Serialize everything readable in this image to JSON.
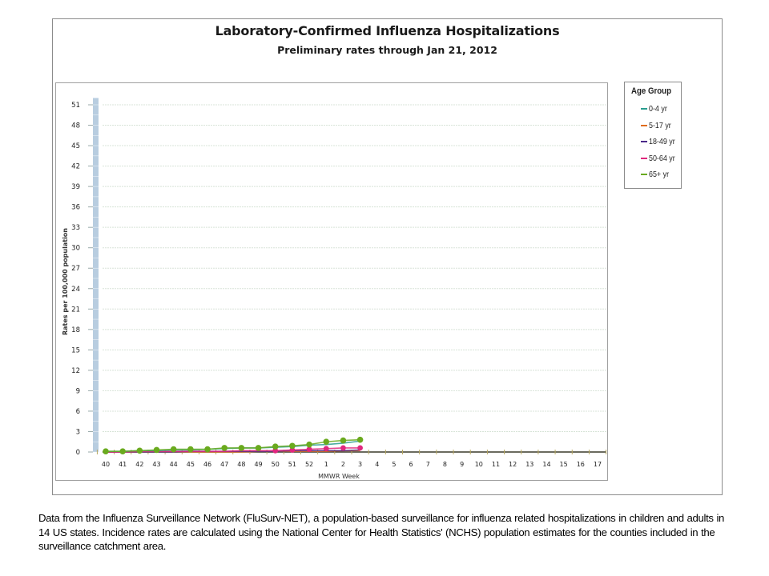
{
  "chart_data": {
    "type": "line",
    "title": "Laboratory-Confirmed Influenza Hospitalizations",
    "subtitle": "Preliminary rates through Jan 21, 2012",
    "xlabel": "MMWR Week",
    "ylabel": "Rates per 100,000 population",
    "ylim": [
      0,
      52
    ],
    "yticks": [
      0,
      3,
      6,
      9,
      12,
      15,
      18,
      21,
      24,
      27,
      30,
      33,
      36,
      39,
      42,
      45,
      48,
      51
    ],
    "grid": true,
    "legend_position": "right",
    "legend_title": "Age Group",
    "categories": [
      "40",
      "41",
      "42",
      "43",
      "44",
      "45",
      "46",
      "47",
      "48",
      "49",
      "50",
      "51",
      "52",
      "1",
      "2",
      "3",
      "4",
      "5",
      "6",
      "7",
      "8",
      "9",
      "10",
      "11",
      "12",
      "13",
      "14",
      "15",
      "16",
      "17"
    ],
    "series": [
      {
        "name": "0-4 yr",
        "color": "#2a9d8f",
        "values": [
          0.1,
          0.1,
          0.2,
          0.2,
          0.3,
          0.3,
          0.4,
          0.5,
          0.6,
          0.6,
          0.7,
          0.8,
          1.0,
          1.1,
          1.3,
          1.6,
          null,
          null,
          null,
          null,
          null,
          null,
          null,
          null,
          null,
          null,
          null,
          null,
          null,
          null
        ]
      },
      {
        "name": "5-17 yr",
        "color": "#e06c1a",
        "values": [
          0.0,
          0.0,
          0.0,
          0.0,
          0.0,
          0.0,
          0.0,
          0.0,
          0.0,
          0.1,
          0.1,
          0.1,
          0.1,
          0.1,
          0.2,
          0.2,
          null,
          null,
          null,
          null,
          null,
          null,
          null,
          null,
          null,
          null,
          null,
          null,
          null,
          null
        ]
      },
      {
        "name": "18-49 yr",
        "color": "#4b2a8a",
        "values": [
          0.0,
          0.0,
          0.0,
          0.0,
          0.0,
          0.1,
          0.1,
          0.1,
          0.1,
          0.1,
          0.1,
          0.2,
          0.2,
          0.2,
          0.2,
          0.3,
          null,
          null,
          null,
          null,
          null,
          null,
          null,
          null,
          null,
          null,
          null,
          null,
          null,
          null
        ]
      },
      {
        "name": "50-64 yr",
        "color": "#e0287e",
        "values": [
          0.0,
          0.0,
          0.1,
          0.1,
          0.1,
          0.1,
          0.1,
          0.1,
          0.2,
          0.2,
          0.2,
          0.3,
          0.4,
          0.5,
          0.6,
          0.6,
          null,
          null,
          null,
          null,
          null,
          null,
          null,
          null,
          null,
          null,
          null,
          null,
          null,
          null
        ]
      },
      {
        "name": "65+ yr",
        "color": "#6aaa1e",
        "values": [
          0.1,
          0.1,
          0.2,
          0.3,
          0.4,
          0.4,
          0.4,
          0.6,
          0.6,
          0.6,
          0.8,
          0.9,
          1.1,
          1.5,
          1.7,
          1.8,
          null,
          null,
          null,
          null,
          null,
          null,
          null,
          null,
          null,
          null,
          null,
          null,
          null,
          null
        ]
      }
    ],
    "cumulative_bar": {
      "label": "overall column at left edge",
      "color": "#b8cde0",
      "top_value": 52
    }
  },
  "header": {
    "title": "Laboratory-Confirmed Influenza Hospitalizations",
    "subtitle": "Preliminary rates through Jan 21, 2012"
  },
  "axes": {
    "xlabel": "MMWR Week",
    "ylabel": "Rates per 100,000 population"
  },
  "legend": {
    "title": "Age Group",
    "items": [
      {
        "label": "0-4 yr",
        "color": "#2a9d8f"
      },
      {
        "label": "5-17 yr",
        "color": "#e06c1a"
      },
      {
        "label": "18-49 yr",
        "color": "#4b2a8a"
      },
      {
        "label": "50-64 yr",
        "color": "#e0287e"
      },
      {
        "label": "65+ yr",
        "color": "#6aaa1e"
      }
    ]
  },
  "caption": "Data from the Influenza  Surveillance  Network (FluSurv-NET),  a population-based surveillance  for influenza  related hospitalizations in children and adults in 14 US states.  Incidence rates are calculated using the National Center for Health Statistics' (NCHS) population estimates for the counties included in the surveillance  catchment  area."
}
